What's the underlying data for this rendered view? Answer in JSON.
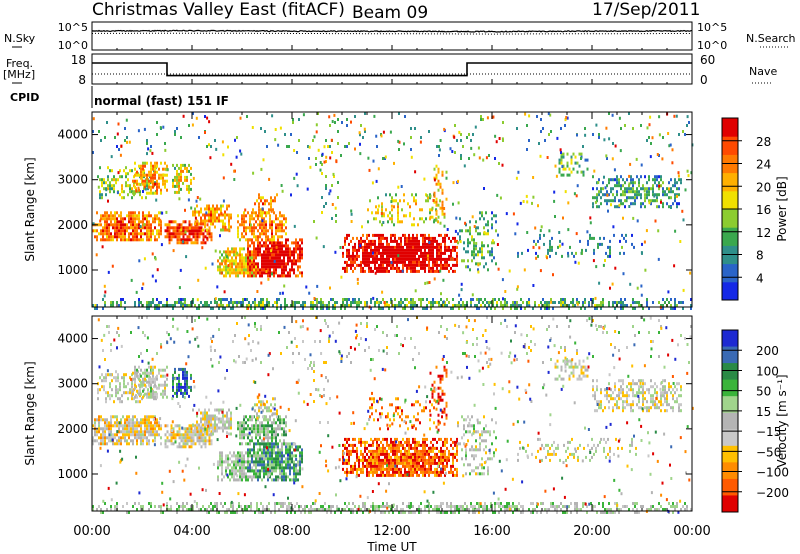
{
  "header": {
    "station": "Christmas Valley East (fitACF)",
    "beam": "Beam 09",
    "date": "17/Sep/2011"
  },
  "top_panels": {
    "nsky_label": "N.Sky",
    "nsearch_label": "N.Search",
    "freq_label_1": "Freq.",
    "freq_label_2": "[MHz]",
    "nave_label": "Nave",
    "cpid_label": "CPID",
    "cpid_text": "normal (fast) 151 IF",
    "noise_ticks_left": [
      "10^5",
      "10^0"
    ],
    "noise_ticks_right": [
      "10^5",
      "10^0"
    ],
    "freq_ticks": [
      "18",
      "8"
    ],
    "nave_ticks": [
      "60",
      "0"
    ]
  },
  "colors": {
    "power_scale": [
      "#1428e6",
      "#2a64c8",
      "#2f8f8a",
      "#3aa84e",
      "#8ccc30",
      "#f0e000",
      "#ffb000",
      "#ff7a00",
      "#ff4a00",
      "#e00000"
    ],
    "velocity_scale": [
      "#e00000",
      "#ff5a00",
      "#ff8c00",
      "#ffc000",
      "#c8c8c8",
      "#b4b4b4",
      "#a0d48c",
      "#3ab43a",
      "#2a8a46",
      "#3a6ab4",
      "#1e2ad2"
    ]
  },
  "chart_data": [
    {
      "type": "line",
      "title": "",
      "xlabel": "",
      "ylabel": "",
      "x": [
        "00:00",
        "04:00",
        "08:00",
        "12:00",
        "16:00",
        "20:00",
        "00:00"
      ],
      "ylim": [
        0,
        100000
      ],
      "scale": "log",
      "series": [
        {
          "name": "N.Sky",
          "values": [
            2500,
            2800,
            2400,
            2200,
            2000,
            2300,
            2600
          ]
        },
        {
          "name": "N.Search",
          "values": [
            900,
            1000,
            900,
            800,
            700,
            800,
            900
          ]
        }
      ]
    },
    {
      "type": "line",
      "title": "",
      "xlabel": "",
      "ylabel": "",
      "x": [
        "00:00",
        "03:00",
        "03:00",
        "15:00",
        "15:00",
        "24:00"
      ],
      "ylim": [
        8,
        18
      ],
      "series": [
        {
          "name": "Freq.",
          "values": [
            15,
            15,
            10.8,
            10.8,
            15,
            15
          ]
        },
        {
          "name": "Nave",
          "values": [
            15,
            15,
            15,
            15,
            15,
            15
          ]
        }
      ]
    },
    {
      "type": "heatmap",
      "title": "",
      "xlabel": "",
      "ylabel": "Slant Range [km]",
      "xlim": [
        0,
        24
      ],
      "ylim": [
        180,
        4500
      ],
      "x_ticks": [
        "00:00",
        "04:00",
        "08:00",
        "12:00",
        "16:00",
        "20:00",
        "00:00"
      ],
      "y_ticks": [
        1000,
        2000,
        3000,
        4000
      ],
      "colorbar_label": "Power [dB]",
      "colorbar_ticks": [
        4,
        8,
        12,
        16,
        20,
        24,
        28
      ],
      "colorbar_range": [
        0,
        32
      ]
    },
    {
      "type": "heatmap",
      "title": "",
      "xlabel": "Time UT",
      "ylabel": "Slant Range [km]",
      "xlim": [
        0,
        24
      ],
      "ylim": [
        180,
        4500
      ],
      "x_ticks": [
        "00:00",
        "04:00",
        "08:00",
        "12:00",
        "16:00",
        "20:00",
        "00:00"
      ],
      "y_ticks": [
        1000,
        2000,
        3000,
        4000
      ],
      "colorbar_label": "Velocity [m s⁻¹]",
      "colorbar_ticks": [
        -200,
        -100,
        -50,
        -15,
        15,
        50,
        100,
        200
      ],
      "colorbar_range": [
        -250,
        250
      ]
    }
  ]
}
